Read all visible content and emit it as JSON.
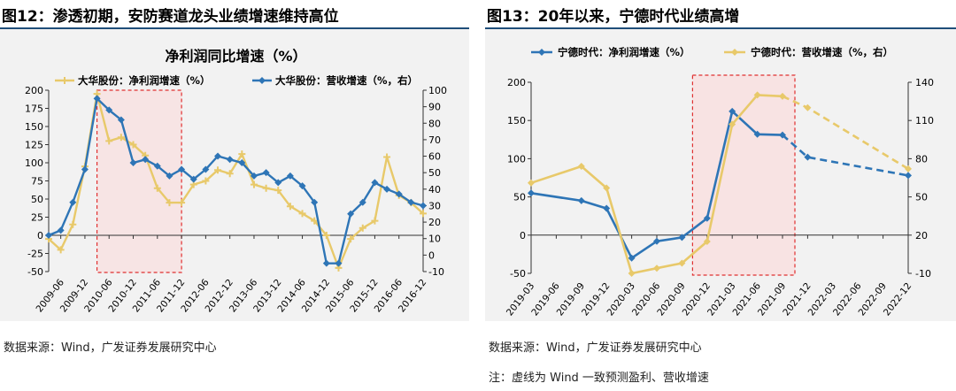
{
  "charts_meta": [
    {
      "figure_title": "图12：渗透初期，安防赛道龙头业绩增速维持高位",
      "source": "数据来源：Wind，广发证券发展研究中心"
    },
    {
      "figure_title": "图13：20年以来，宁德时代业绩高增",
      "source": "数据来源：Wind，广发证券发展研究中心",
      "note": "注：虚线为 Wind 一致预测盈利、营收增速"
    }
  ],
  "chart_data": [
    {
      "type": "line",
      "title": "净利润同比增速（%）",
      "x_ticks": [
        "2009-06",
        "2009-12",
        "2010-06",
        "2010-12",
        "2011-06",
        "2011-12",
        "2012-06",
        "2012-12",
        "2013-06",
        "2013-12",
        "2014-06",
        "2014-12",
        "2015-06",
        "2015-12",
        "2016-06",
        "2016-12"
      ],
      "x_quarters": [
        "2009-03",
        "2009-06",
        "2009-09",
        "2009-12",
        "2010-03",
        "2010-06",
        "2010-09",
        "2010-12",
        "2011-03",
        "2011-06",
        "2011-09",
        "2011-12",
        "2012-03",
        "2012-06",
        "2012-09",
        "2012-12",
        "2013-03",
        "2013-06",
        "2013-09",
        "2013-12",
        "2014-03",
        "2014-06",
        "2014-09",
        "2014-12",
        "2015-03",
        "2015-06",
        "2015-09",
        "2015-12",
        "2016-03",
        "2016-06",
        "2016-09",
        "2016-12"
      ],
      "y_left": {
        "min": -50,
        "max": 200,
        "ticks": [
          -50,
          -25,
          0,
          25,
          50,
          75,
          100,
          125,
          150,
          175,
          200
        ]
      },
      "y_right": {
        "min": -10,
        "max": 100,
        "ticks": [
          -10,
          0,
          10,
          20,
          30,
          40,
          50,
          60,
          70,
          80,
          90,
          100
        ]
      },
      "series": [
        {
          "name": "大华股份：净利润增速（%）",
          "color": "#e8c96a",
          "axis": "left",
          "marker": "plus",
          "values": [
            -5,
            -20,
            15,
            95,
            195,
            130,
            135,
            125,
            110,
            65,
            45,
            45,
            70,
            75,
            90,
            85,
            112,
            70,
            65,
            62,
            40,
            30,
            20,
            0,
            -45,
            -5,
            10,
            20,
            108,
            55,
            45,
            30
          ]
        },
        {
          "name": "大华股份：营收增速（%，右）",
          "color": "#2e75b6",
          "axis": "right",
          "marker": "diamond",
          "values": [
            12,
            15,
            32,
            52,
            95,
            88,
            82,
            56,
            58,
            54,
            48,
            52,
            46,
            52,
            60,
            58,
            56,
            48,
            50,
            44,
            48,
            42,
            32,
            -5,
            -5,
            25,
            32,
            44,
            40,
            37,
            32,
            30
          ]
        }
      ],
      "highlight": {
        "from": "2010-03",
        "to": "2011-12"
      }
    },
    {
      "type": "line",
      "x_ticks": [
        "2019-03",
        "2019-06",
        "2019-09",
        "2019-12",
        "2020-03",
        "2020-06",
        "2020-09",
        "2020-12",
        "2021-03",
        "2021-06",
        "2021-09",
        "2021-12",
        "2022-03",
        "2022-06",
        "2022-09",
        "2022-12"
      ],
      "y_left": {
        "min": -50,
        "max": 200,
        "ticks": [
          -50,
          0,
          50,
          100,
          150,
          200
        ]
      },
      "y_right": {
        "min": -10,
        "max": 140,
        "ticks": [
          -10,
          20,
          50,
          80,
          110,
          140
        ]
      },
      "series": [
        {
          "name": "宁德时代：净利润增速（%）",
          "color": "#2e75b6",
          "axis": "left",
          "marker": "diamond",
          "x": [
            "2019-03",
            "2019-09",
            "2019-12",
            "2020-03",
            "2020-06",
            "2020-09",
            "2020-12",
            "2021-03",
            "2021-06",
            "2021-09"
          ],
          "values": [
            55,
            45,
            35,
            -30,
            -8,
            -3,
            22,
            162,
            132,
            131
          ],
          "forecast": {
            "x": [
              "2021-09",
              "2021-12",
              "2022-12"
            ],
            "values": [
              131,
              102,
              78
            ]
          }
        },
        {
          "name": "宁德时代：营收增速（%，右）",
          "color": "#e8c96a",
          "axis": "right",
          "marker": "diamond",
          "x": [
            "2019-03",
            "2019-09",
            "2019-12",
            "2020-03",
            "2020-06",
            "2020-09",
            "2020-12",
            "2021-03",
            "2021-06",
            "2021-09"
          ],
          "values": [
            61,
            74,
            57,
            -10,
            -6,
            -2,
            15,
            107,
            130,
            129
          ],
          "forecast": {
            "x": [
              "2021-09",
              "2021-12",
              "2022-12"
            ],
            "values": [
              129,
              120,
              72
            ]
          }
        }
      ],
      "highlight": {
        "from": "2020-09",
        "to": "2021-09"
      }
    }
  ]
}
